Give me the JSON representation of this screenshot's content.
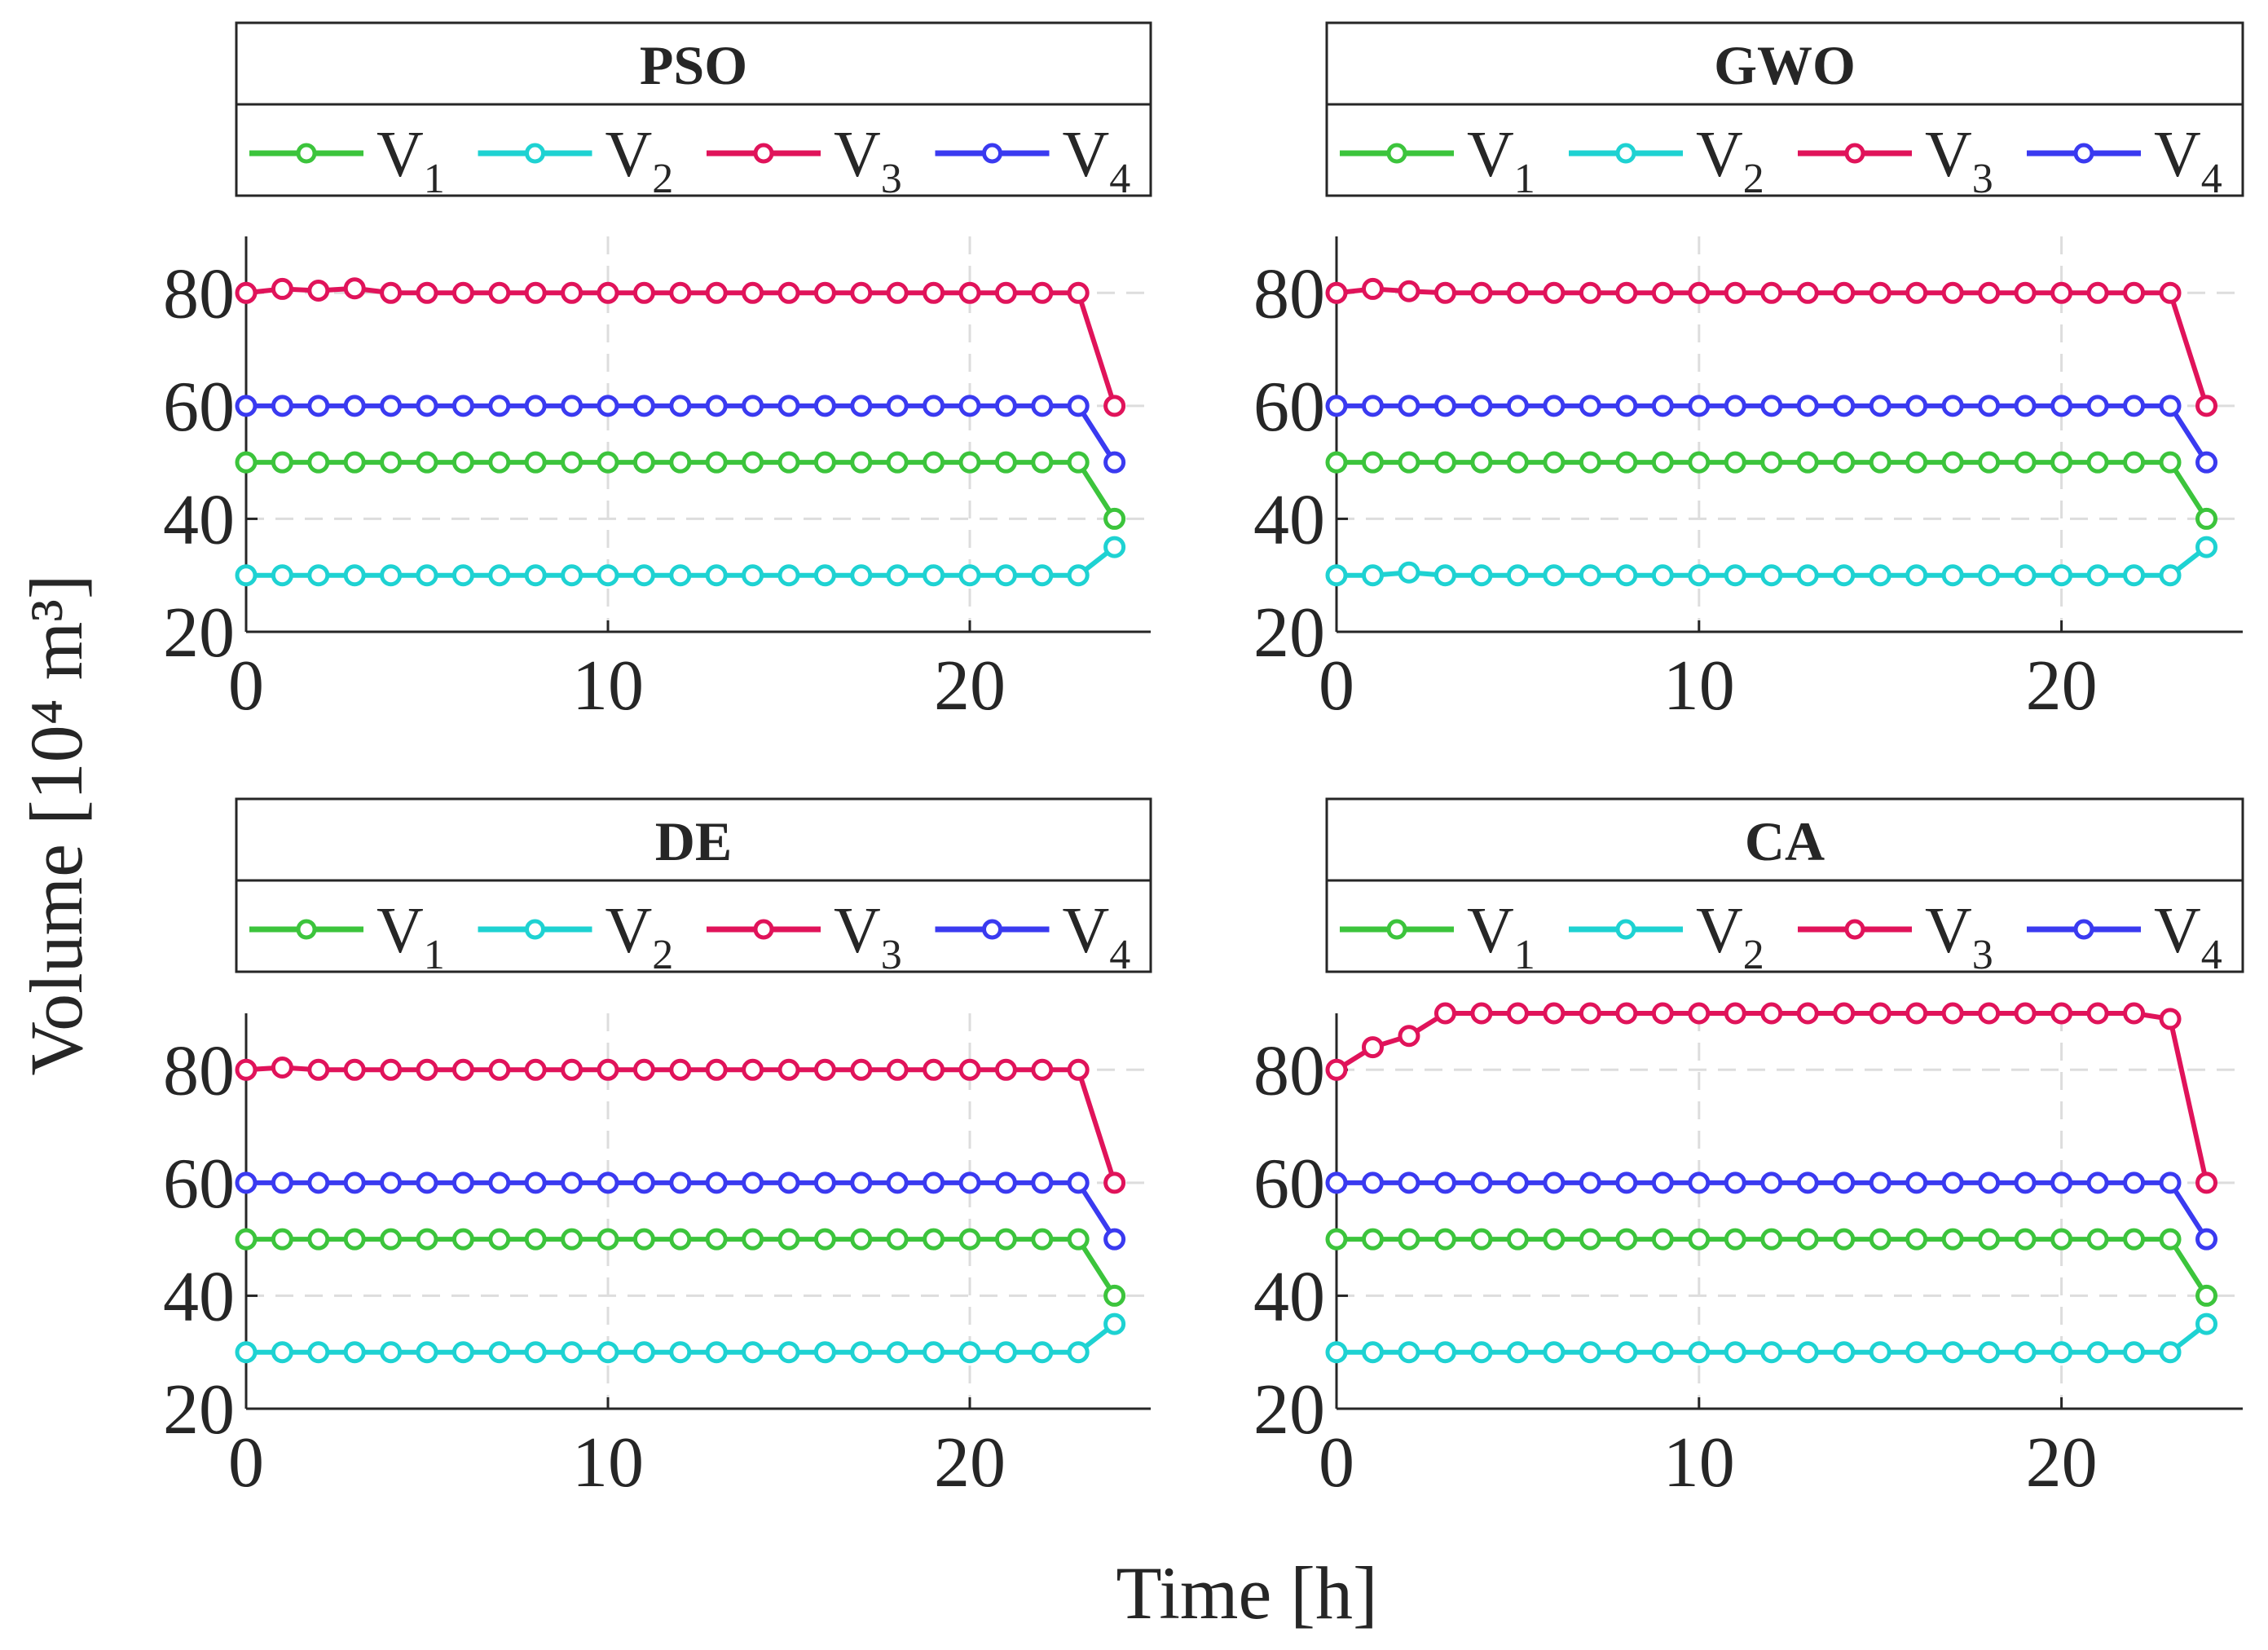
{
  "figure": {
    "ylabel": "Volume [10⁴ m³]",
    "xlabel": "Time [h]"
  },
  "series_style": {
    "V1": "#3cc43c",
    "V2": "#1ed2d2",
    "V3": "#e0135a",
    "V4": "#3a3af0"
  },
  "chart_data": [
    {
      "type": "line",
      "title": "PSO",
      "xlim": [
        0,
        25
      ],
      "ylim": [
        20,
        90
      ],
      "xticks": [
        0,
        10,
        20
      ],
      "yticks": [
        20,
        40,
        60,
        80
      ],
      "grid": true,
      "x": [
        0,
        1,
        2,
        3,
        4,
        5,
        6,
        7,
        8,
        9,
        10,
        11,
        12,
        13,
        14,
        15,
        16,
        17,
        18,
        19,
        20,
        21,
        22,
        23,
        24
      ],
      "series": [
        {
          "name": "V",
          "sub": "1",
          "key": "V1",
          "values": [
            50,
            50,
            50,
            50,
            50,
            50,
            50,
            50,
            50,
            50,
            50,
            50,
            50,
            50,
            50,
            50,
            50,
            50,
            50,
            50,
            50,
            50,
            50,
            50,
            40
          ]
        },
        {
          "name": "V",
          "sub": "2",
          "key": "V2",
          "values": [
            30,
            30,
            30,
            30,
            30,
            30,
            30,
            30,
            30,
            30,
            30,
            30,
            30,
            30,
            30,
            30,
            30,
            30,
            30,
            30,
            30,
            30,
            30,
            30,
            35
          ]
        },
        {
          "name": "V",
          "sub": "3",
          "key": "V3",
          "values": [
            80,
            80.7,
            80.4,
            80.8,
            80,
            80,
            80,
            80,
            80,
            80,
            80,
            80,
            80,
            80,
            80,
            80,
            80,
            80,
            80,
            80,
            80,
            80,
            80,
            80,
            60
          ]
        },
        {
          "name": "V",
          "sub": "4",
          "key": "V4",
          "values": [
            60,
            60,
            60,
            60,
            60,
            60,
            60,
            60,
            60,
            60,
            60,
            60,
            60,
            60,
            60,
            60,
            60,
            60,
            60,
            60,
            60,
            60,
            60,
            60,
            50
          ]
        }
      ]
    },
    {
      "type": "line",
      "title": "GWO",
      "xlim": [
        0,
        25
      ],
      "ylim": [
        20,
        90
      ],
      "xticks": [
        0,
        10,
        20
      ],
      "yticks": [
        20,
        40,
        60,
        80
      ],
      "grid": true,
      "x": [
        0,
        1,
        2,
        3,
        4,
        5,
        6,
        7,
        8,
        9,
        10,
        11,
        12,
        13,
        14,
        15,
        16,
        17,
        18,
        19,
        20,
        21,
        22,
        23,
        24
      ],
      "series": [
        {
          "name": "V",
          "sub": "1",
          "key": "V1",
          "values": [
            50,
            50,
            50,
            50,
            50,
            50,
            50,
            50,
            50,
            50,
            50,
            50,
            50,
            50,
            50,
            50,
            50,
            50,
            50,
            50,
            50,
            50,
            50,
            50,
            40
          ]
        },
        {
          "name": "V",
          "sub": "2",
          "key": "V2",
          "values": [
            30,
            30,
            30.5,
            30,
            30,
            30,
            30,
            30,
            30,
            30,
            30,
            30,
            30,
            30,
            30,
            30,
            30,
            30,
            30,
            30,
            30,
            30,
            30,
            30,
            35
          ]
        },
        {
          "name": "V",
          "sub": "3",
          "key": "V3",
          "values": [
            80,
            80.7,
            80.3,
            80,
            80,
            80,
            80,
            80,
            80,
            80,
            80,
            80,
            80,
            80,
            80,
            80,
            80,
            80,
            80,
            80,
            80,
            80,
            80,
            80,
            60
          ]
        },
        {
          "name": "V",
          "sub": "4",
          "key": "V4",
          "values": [
            60,
            60,
            60,
            60,
            60,
            60,
            60,
            60,
            60,
            60,
            60,
            60,
            60,
            60,
            60,
            60,
            60,
            60,
            60,
            60,
            60,
            60,
            60,
            60,
            50
          ]
        }
      ]
    },
    {
      "type": "line",
      "title": "DE",
      "xlim": [
        0,
        25
      ],
      "ylim": [
        20,
        90
      ],
      "xticks": [
        0,
        10,
        20
      ],
      "yticks": [
        20,
        40,
        60,
        80
      ],
      "grid": true,
      "x": [
        0,
        1,
        2,
        3,
        4,
        5,
        6,
        7,
        8,
        9,
        10,
        11,
        12,
        13,
        14,
        15,
        16,
        17,
        18,
        19,
        20,
        21,
        22,
        23,
        24
      ],
      "series": [
        {
          "name": "V",
          "sub": "1",
          "key": "V1",
          "values": [
            50,
            50,
            50,
            50,
            50,
            50,
            50,
            50,
            50,
            50,
            50,
            50,
            50,
            50,
            50,
            50,
            50,
            50,
            50,
            50,
            50,
            50,
            50,
            50,
            40
          ]
        },
        {
          "name": "V",
          "sub": "2",
          "key": "V2",
          "values": [
            30,
            30,
            30,
            30,
            30,
            30,
            30,
            30,
            30,
            30,
            30,
            30,
            30,
            30,
            30,
            30,
            30,
            30,
            30,
            30,
            30,
            30,
            30,
            30,
            35
          ]
        },
        {
          "name": "V",
          "sub": "3",
          "key": "V3",
          "values": [
            80,
            80.4,
            80,
            80,
            80,
            80,
            80,
            80,
            80,
            80,
            80,
            80,
            80,
            80,
            80,
            80,
            80,
            80,
            80,
            80,
            80,
            80,
            80,
            80,
            60
          ]
        },
        {
          "name": "V",
          "sub": "4",
          "key": "V4",
          "values": [
            60,
            60,
            60,
            60,
            60,
            60,
            60,
            60,
            60,
            60,
            60,
            60,
            60,
            60,
            60,
            60,
            60,
            60,
            60,
            60,
            60,
            60,
            60,
            60,
            50
          ]
        }
      ]
    },
    {
      "type": "line",
      "title": "CA",
      "xlim": [
        0,
        25
      ],
      "ylim": [
        20,
        90
      ],
      "xticks": [
        0,
        10,
        20
      ],
      "yticks": [
        20,
        40,
        60,
        80
      ],
      "grid": true,
      "x": [
        0,
        1,
        2,
        3,
        4,
        5,
        6,
        7,
        8,
        9,
        10,
        11,
        12,
        13,
        14,
        15,
        16,
        17,
        18,
        19,
        20,
        21,
        22,
        23,
        24
      ],
      "series": [
        {
          "name": "V",
          "sub": "1",
          "key": "V1",
          "values": [
            50,
            50,
            50,
            50,
            50,
            50,
            50,
            50,
            50,
            50,
            50,
            50,
            50,
            50,
            50,
            50,
            50,
            50,
            50,
            50,
            50,
            50,
            50,
            50,
            40
          ]
        },
        {
          "name": "V",
          "sub": "2",
          "key": "V2",
          "values": [
            30,
            30,
            30,
            30,
            30,
            30,
            30,
            30,
            30,
            30,
            30,
            30,
            30,
            30,
            30,
            30,
            30,
            30,
            30,
            30,
            30,
            30,
            30,
            30,
            35
          ]
        },
        {
          "name": "V",
          "sub": "3",
          "key": "V3",
          "values": [
            80,
            84,
            86,
            90,
            90,
            90,
            90,
            90,
            90,
            90,
            90,
            90,
            90,
            90,
            90,
            90,
            90,
            90,
            90,
            90,
            90,
            90,
            90,
            89,
            60
          ]
        },
        {
          "name": "V",
          "sub": "4",
          "key": "V4",
          "values": [
            60,
            60,
            60,
            60,
            60,
            60,
            60,
            60,
            60,
            60,
            60,
            60,
            60,
            60,
            60,
            60,
            60,
            60,
            60,
            60,
            60,
            60,
            60,
            60,
            50
          ]
        }
      ]
    }
  ]
}
